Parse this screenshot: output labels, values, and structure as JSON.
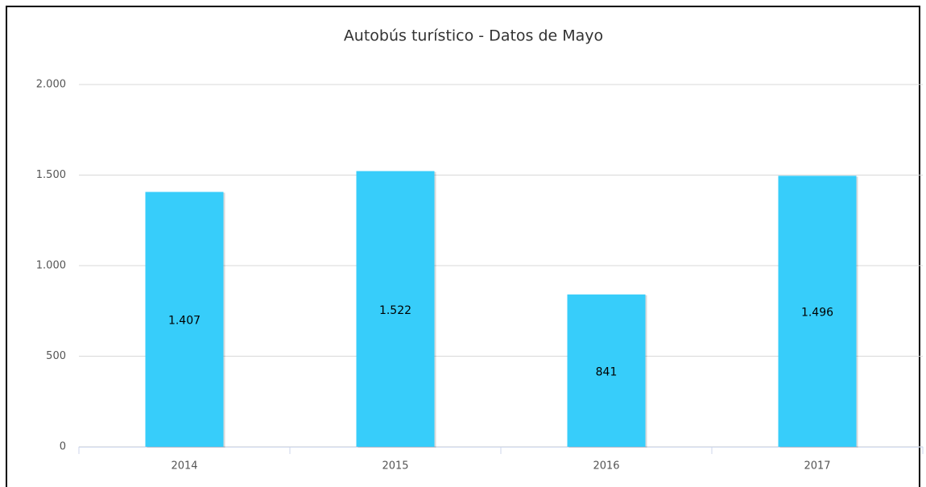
{
  "chart_data": {
    "type": "bar",
    "title": "Autobús turístico - Datos de Mayo",
    "categories": [
      "2014",
      "2015",
      "2016",
      "2017"
    ],
    "values": [
      1407,
      1522,
      841,
      1496
    ],
    "value_labels": [
      "1.407",
      "1.522",
      "841",
      "1.496"
    ],
    "color": "#37cdfa",
    "ylim": [
      0,
      2000
    ],
    "yticks": [
      0,
      {
        "value": 500,
        "label": "500"
      },
      {
        "value": 1000,
        "label": "1.000"
      },
      {
        "value": 1500,
        "label": "1.500"
      },
      {
        "value": 2000,
        "label": "2.000"
      }
    ],
    "grid": true
  }
}
